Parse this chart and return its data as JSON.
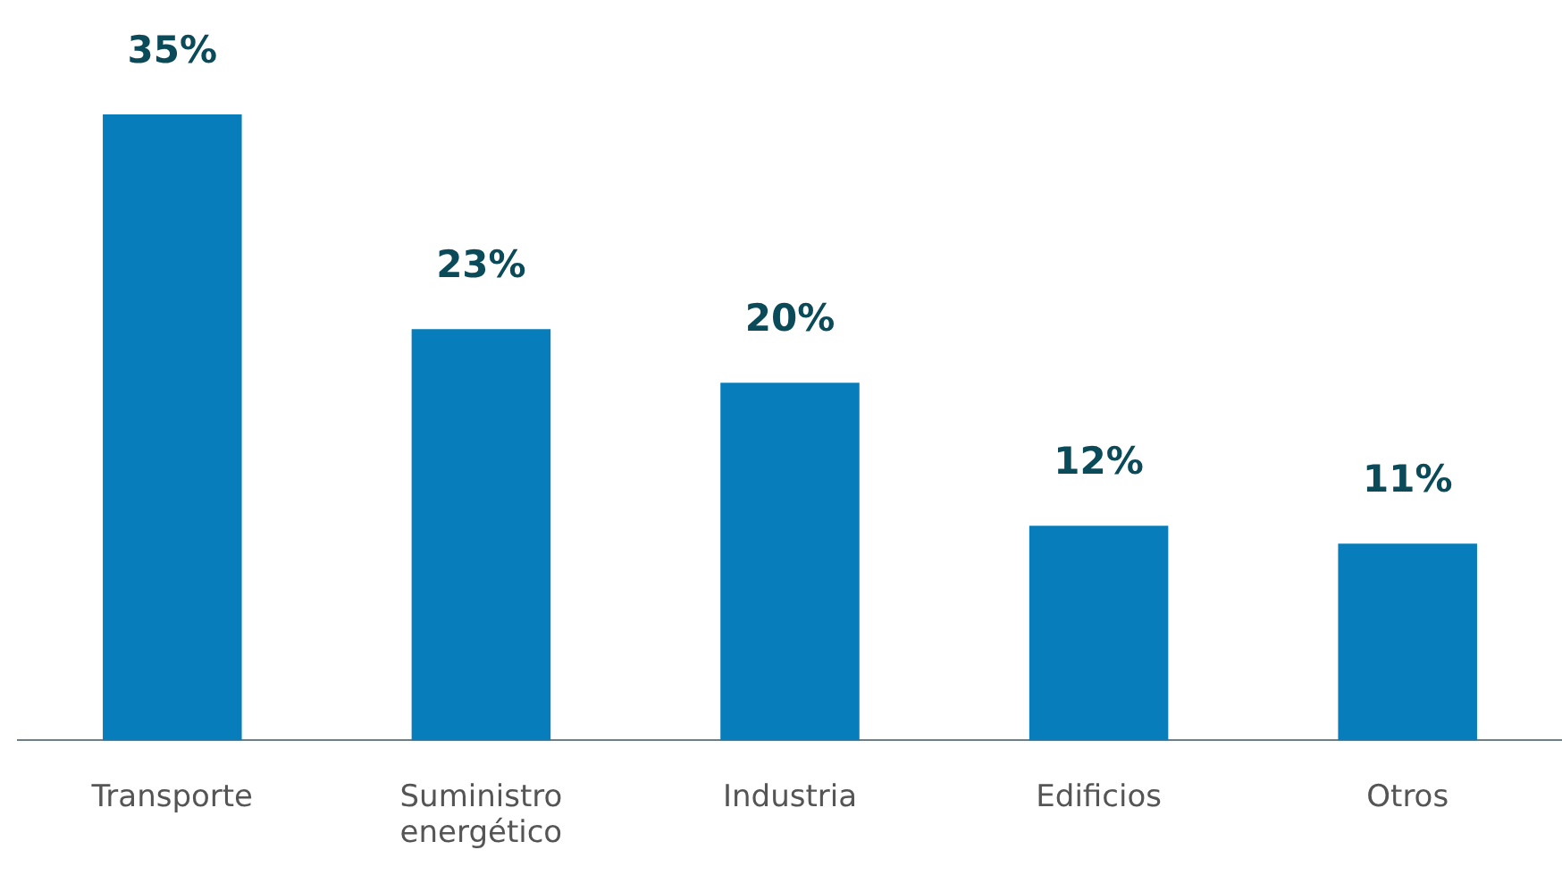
{
  "chart_data": {
    "type": "bar",
    "categories": [
      "Transporte",
      "Suministro energético",
      "Industria",
      "Edificios",
      "Otros"
    ],
    "values": [
      35,
      23,
      20,
      12,
      11
    ],
    "value_labels": [
      "35%",
      "23%",
      "20%",
      "12%",
      "11%"
    ],
    "color": "#077dbb",
    "grid": false,
    "legend": false
  }
}
